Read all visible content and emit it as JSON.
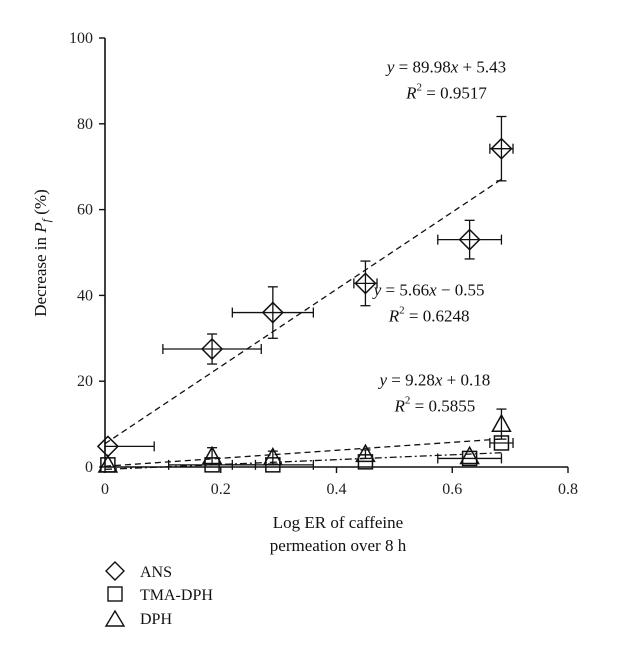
{
  "chart_data": {
    "type": "scatter",
    "xlabel_line1": "Log ER of caffeine",
    "xlabel_line2": "permeation over 8 h",
    "ylabel_main": "Decrease in ",
    "ylabel_var": "P",
    "ylabel_sub": "f",
    "ylabel_unit": " (%)",
    "xlim": [
      0,
      0.8
    ],
    "ylim": [
      0,
      100
    ],
    "x_ticks": [
      0,
      0.2,
      0.4,
      0.6,
      0.8
    ],
    "x_tick_labels": [
      "0",
      "0.2",
      "0.4",
      "0.6",
      "0.8"
    ],
    "y_ticks": [
      0,
      20,
      40,
      60,
      80,
      100
    ],
    "y_tick_labels": [
      "0",
      "20",
      "40",
      "60",
      "80",
      "100"
    ],
    "grid": false,
    "legend_position": "bottom-left",
    "series": [
      {
        "name": "ANS",
        "marker": "diamond",
        "points": [
          {
            "x": 0.005,
            "y": 4.8,
            "xerr": [
              0.005,
              0.08
            ],
            "yerr": 0
          },
          {
            "x": 0.185,
            "y": 27.5,
            "xerr": [
              0.085,
              0.085
            ],
            "yerr": 3.5
          },
          {
            "x": 0.29,
            "y": 36.0,
            "xerr": [
              0.07,
              0.07
            ],
            "yerr": 6.0
          },
          {
            "x": 0.45,
            "y": 42.8,
            "xerr": [
              0.02,
              0.02
            ],
            "yerr": 5.2
          },
          {
            "x": 0.63,
            "y": 53.0,
            "xerr": [
              0.055,
              0.055
            ],
            "yerr": 4.5
          },
          {
            "x": 0.685,
            "y": 74.2,
            "xerr": [
              0.02,
              0.02
            ],
            "yerr": 7.5
          }
        ],
        "fit": {
          "slope": 89.98,
          "intercept": 5.43,
          "x_range": [
            0,
            0.685
          ],
          "style": "dashed"
        }
      },
      {
        "name": "TMA-DPH",
        "marker": "square",
        "points": [
          {
            "x": 0.005,
            "y": 0.5,
            "xerr": [
              0,
              0
            ],
            "yerr": 0
          },
          {
            "x": 0.185,
            "y": 0.5,
            "xerr": [
              0.075,
              0.075
            ],
            "yerr": 0
          },
          {
            "x": 0.29,
            "y": 0.5,
            "xerr": [
              0.07,
              0.07
            ],
            "yerr": 0
          },
          {
            "x": 0.45,
            "y": 1.2,
            "xerr": [
              0,
              0
            ],
            "yerr": 0
          },
          {
            "x": 0.63,
            "y": 2.0,
            "xerr": [
              0.055,
              0.055
            ],
            "yerr": 0
          },
          {
            "x": 0.685,
            "y": 5.6,
            "xerr": [
              0.02,
              0.02
            ],
            "yerr": 0
          }
        ],
        "fit": {
          "slope": 5.66,
          "intercept": -0.55,
          "x_range": [
            0,
            0.685
          ],
          "style": "dash-dot"
        }
      },
      {
        "name": "DPH",
        "marker": "triangle",
        "points": [
          {
            "x": 0.005,
            "y": 0.5,
            "xerr": [
              0,
              0
            ],
            "yerr": 0
          },
          {
            "x": 0.185,
            "y": 2.5,
            "xerr": [
              0,
              0
            ],
            "yerr": 2.0
          },
          {
            "x": 0.29,
            "y": 2.2,
            "xerr": [
              0,
              0
            ],
            "yerr": 1.5
          },
          {
            "x": 0.45,
            "y": 3.0,
            "xerr": [
              0,
              0
            ],
            "yerr": 1.0
          },
          {
            "x": 0.63,
            "y": 2.5,
            "xerr": [
              0,
              0
            ],
            "yerr": 0
          },
          {
            "x": 0.685,
            "y": 10.0,
            "xerr": [
              0,
              0
            ],
            "yerr": 3.5
          }
        ],
        "fit": {
          "slope": 9.28,
          "intercept": 0.18,
          "x_range": [
            0,
            0.685
          ],
          "style": "dashed"
        }
      }
    ],
    "annotations": [
      {
        "id": "ans",
        "eq_a": "y",
        "eq_b": " = 89.98",
        "eq_c": "x",
        "eq_d": " + 5.43",
        "r_a": "R",
        "r_sup": "2",
        "r_b": " = 0.9517",
        "anchor_x": 0.59,
        "anchor_y": 92
      },
      {
        "id": "tma",
        "eq_a": "y",
        "eq_b": " = 5.66",
        "eq_c": "x",
        "eq_d": " − 0.55",
        "r_a": "R",
        "r_sup": "2",
        "r_b": " = 0.6248",
        "anchor_x": 0.56,
        "anchor_y": 40
      },
      {
        "id": "dph",
        "eq_a": "y",
        "eq_b": " = 9.28",
        "eq_c": "x",
        "eq_d": " + 0.18",
        "r_a": "R",
        "r_sup": "2",
        "r_b": " = 0.5855",
        "anchor_x": 0.57,
        "anchor_y": 19
      }
    ]
  }
}
